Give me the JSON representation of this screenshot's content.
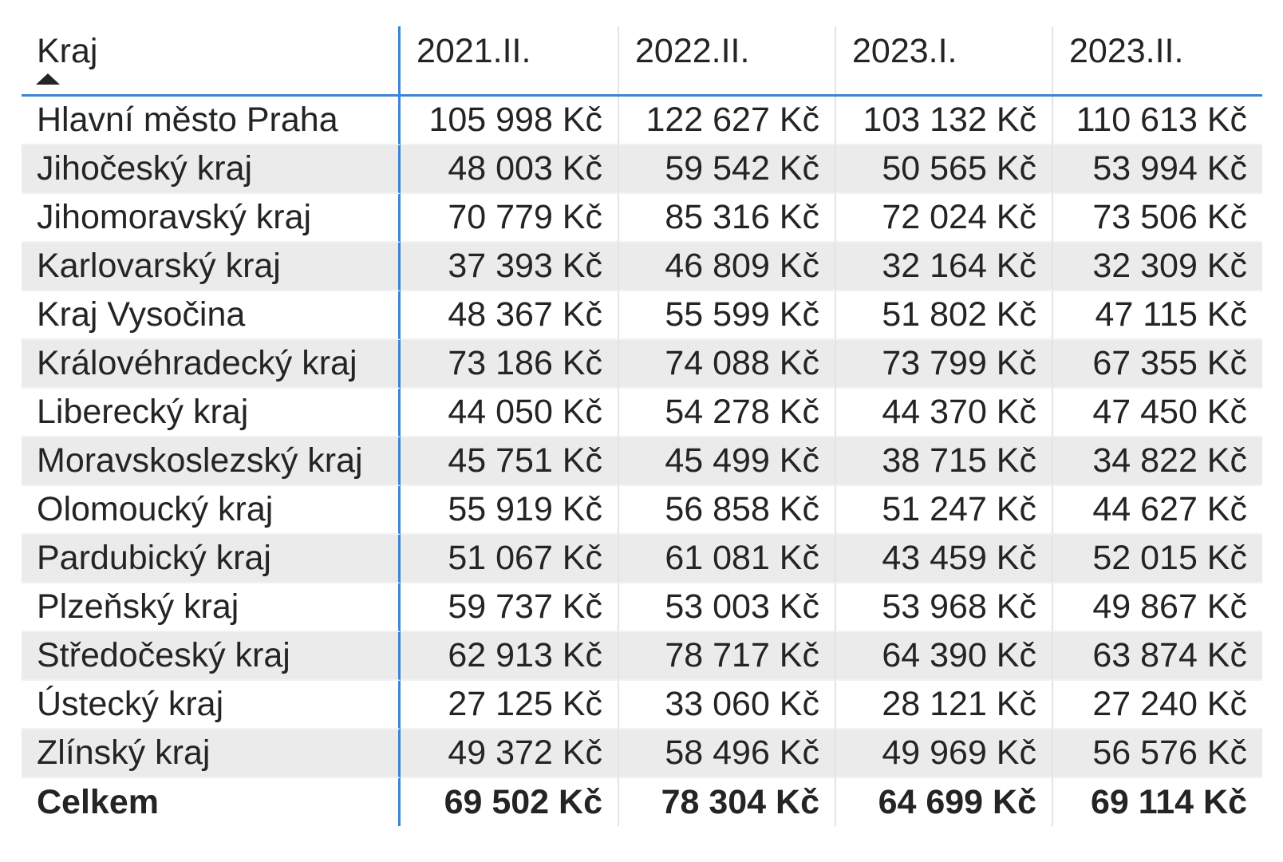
{
  "chart_data": {
    "type": "table",
    "header": {
      "row_label": "Kraj",
      "columns": [
        "2021.II.",
        "2022.II.",
        "2023.I.",
        "2023.II."
      ]
    },
    "sort": {
      "column": "Kraj",
      "direction": "ascending",
      "icon": "sort-ascending-icon"
    },
    "rows": [
      {
        "label": "Hlavní město Praha",
        "values": [
          "105 998 Kč",
          "122 627 Kč",
          "103 132 Kč",
          "110 613 Kč"
        ]
      },
      {
        "label": "Jihočeský kraj",
        "values": [
          "48 003 Kč",
          "59 542 Kč",
          "50 565 Kč",
          "53 994 Kč"
        ]
      },
      {
        "label": "Jihomoravský kraj",
        "values": [
          "70 779 Kč",
          "85 316 Kč",
          "72 024 Kč",
          "73 506 Kč"
        ]
      },
      {
        "label": "Karlovarský kraj",
        "values": [
          "37 393 Kč",
          "46 809 Kč",
          "32 164 Kč",
          "32 309 Kč"
        ]
      },
      {
        "label": "Kraj Vysočina",
        "values": [
          "48 367 Kč",
          "55 599 Kč",
          "51 802 Kč",
          "47 115 Kč"
        ]
      },
      {
        "label": "Královéhradecký kraj",
        "values": [
          "73 186 Kč",
          "74 088 Kč",
          "73 799 Kč",
          "67 355 Kč"
        ]
      },
      {
        "label": "Liberecký kraj",
        "values": [
          "44 050 Kč",
          "54 278 Kč",
          "44 370 Kč",
          "47 450 Kč"
        ]
      },
      {
        "label": "Moravskoslezský kraj",
        "values": [
          "45 751 Kč",
          "45 499 Kč",
          "38 715 Kč",
          "34 822 Kč"
        ]
      },
      {
        "label": "Olomoucký kraj",
        "values": [
          "55 919 Kč",
          "56 858 Kč",
          "51 247 Kč",
          "44 627 Kč"
        ]
      },
      {
        "label": "Pardubický kraj",
        "values": [
          "51 067 Kč",
          "61 081 Kč",
          "43 459 Kč",
          "52 015 Kč"
        ]
      },
      {
        "label": "Plzeňský kraj",
        "values": [
          "59 737 Kč",
          "53 003 Kč",
          "53 968 Kč",
          "49 867 Kč"
        ]
      },
      {
        "label": "Středočeský kraj",
        "values": [
          "62 913 Kč",
          "78 717 Kč",
          "64 390 Kč",
          "63 874 Kč"
        ]
      },
      {
        "label": "Ústecký kraj",
        "values": [
          "27 125 Kč",
          "33 060 Kč",
          "28 121 Kč",
          "27 240 Kč"
        ]
      },
      {
        "label": "Zlínský kraj",
        "values": [
          "49 372 Kč",
          "58 496 Kč",
          "49 969 Kč",
          "56 576 Kč"
        ]
      }
    ],
    "total": {
      "label": "Celkem",
      "values": [
        "69 502 Kč",
        "78 304 Kč",
        "64 699 Kč",
        "69 114 Kč"
      ]
    },
    "colors": {
      "accent_line": "#3a85d6",
      "banded_row": "#ebebeb",
      "text": "#252423"
    }
  }
}
